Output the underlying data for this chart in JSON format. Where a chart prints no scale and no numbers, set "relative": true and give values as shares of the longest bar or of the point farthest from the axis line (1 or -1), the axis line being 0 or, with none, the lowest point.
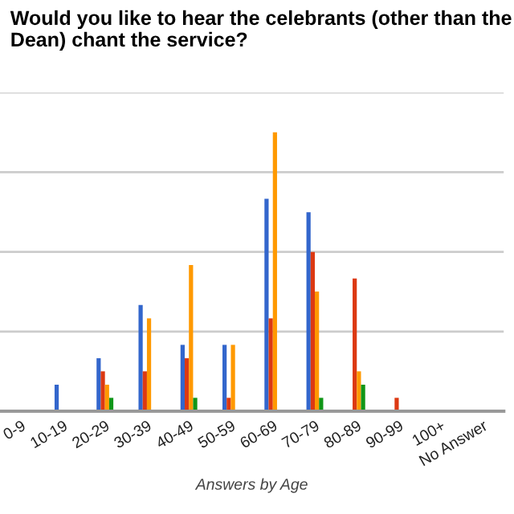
{
  "chart_data": {
    "type": "bar",
    "title": "Would you like to hear the celebrants (other than the Dean) chant the service?",
    "xlabel": "Answers by Age",
    "categories": [
      "0-9",
      "10-19",
      "20-29",
      "30-39",
      "40-49",
      "50-59",
      "60-69",
      "70-79",
      "80-89",
      "90-99",
      "100+",
      "No Answer"
    ],
    "relative": true,
    "grid": "y",
    "legend": false,
    "series": [
      {
        "color": "#3366cc",
        "values": [
          0,
          0.095,
          0.19,
          0.381,
          0.238,
          0.238,
          0.762,
          0.714,
          0,
          0,
          0,
          0
        ]
      },
      {
        "color": "#dc3912",
        "values": [
          0,
          0,
          0.143,
          0.143,
          0.19,
          0.048,
          0.333,
          0.571,
          0.476,
          0.048,
          0,
          0
        ]
      },
      {
        "color": "#ff9900",
        "values": [
          0,
          0,
          0.095,
          0.333,
          0.524,
          0.238,
          1,
          0.429,
          0.143,
          0,
          0,
          0
        ]
      },
      {
        "color": "#109618",
        "values": [
          0,
          0,
          0.048,
          0,
          0.048,
          0,
          0,
          0.048,
          0.095,
          0,
          0,
          0
        ]
      }
    ]
  }
}
